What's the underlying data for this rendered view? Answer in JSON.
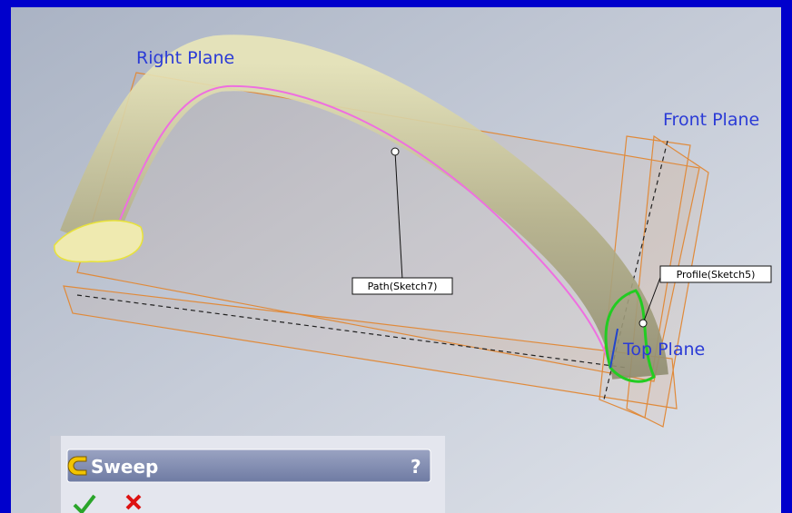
{
  "viewport": {
    "labels": {
      "right_plane": "Right Plane",
      "front_plane": "Front Plane",
      "top_plane": "Top Plane"
    },
    "callouts": {
      "path": "Path(Sketch7)",
      "profile": "Profile(Sketch5)"
    }
  },
  "property_manager": {
    "title": "Sweep",
    "help": "?"
  }
}
